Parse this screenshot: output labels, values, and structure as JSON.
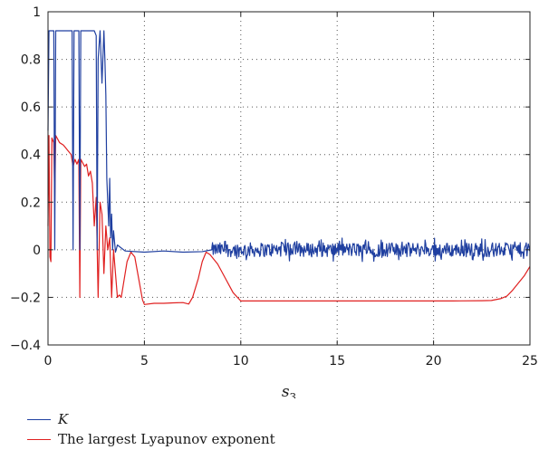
{
  "chart_data": {
    "type": "line",
    "xlabel": "s",
    "xlabel_subscript": "3",
    "ylabel": "",
    "xlim": [
      0,
      25
    ],
    "ylim": [
      -0.4,
      1
    ],
    "x_ticks": [
      0,
      5,
      10,
      15,
      20,
      25
    ],
    "y_ticks": [
      -0.4,
      -0.2,
      0,
      0.2,
      0.4,
      0.6,
      0.8,
      1
    ],
    "x_tick_labels": [
      "0",
      "5",
      "10",
      "15",
      "20",
      "25"
    ],
    "y_tick_labels": [
      "−0.4",
      "−0.2",
      "0",
      "0.2",
      "0.4",
      "0.6",
      "0.8",
      "1"
    ],
    "grid": true,
    "legend_position": "below-left",
    "series": [
      {
        "name": "K",
        "color": "#1f3fa0",
        "noisy_from_x": 8.5,
        "noise_amplitude": 0.03,
        "points": [
          [
            0,
            0.5
          ],
          [
            0.05,
            0.92
          ],
          [
            0.3,
            0.92
          ],
          [
            0.35,
            0.0
          ],
          [
            0.4,
            0.92
          ],
          [
            1.25,
            0.92
          ],
          [
            1.3,
            0.0
          ],
          [
            1.35,
            0.92
          ],
          [
            1.6,
            0.92
          ],
          [
            1.65,
            0.0
          ],
          [
            1.7,
            0.92
          ],
          [
            2.4,
            0.92
          ],
          [
            2.5,
            0.9
          ],
          [
            2.55,
            0.0
          ],
          [
            2.6,
            0.8
          ],
          [
            2.7,
            0.92
          ],
          [
            2.8,
            0.7
          ],
          [
            2.9,
            0.92
          ],
          [
            2.95,
            0.8
          ],
          [
            3.0,
            0.65
          ],
          [
            3.05,
            0.3
          ],
          [
            3.1,
            0.2
          ],
          [
            3.15,
            0.1
          ],
          [
            3.2,
            0.3
          ],
          [
            3.25,
            0.05
          ],
          [
            3.3,
            0.15
          ],
          [
            3.35,
            0.0
          ],
          [
            3.4,
            0.08
          ],
          [
            3.5,
            -0.01
          ],
          [
            3.6,
            0.02
          ],
          [
            4.0,
            -0.005
          ],
          [
            5.0,
            -0.01
          ],
          [
            6.0,
            -0.005
          ],
          [
            7.0,
            -0.01
          ],
          [
            8.0,
            -0.008
          ],
          [
            8.5,
            0.0
          ],
          [
            25,
            0.0
          ]
        ]
      },
      {
        "name": "The largest Lyapunov exponent",
        "color": "#e02020",
        "points": [
          [
            0,
            0.1
          ],
          [
            0.05,
            0.48
          ],
          [
            0.1,
            -0.03
          ],
          [
            0.15,
            -0.05
          ],
          [
            0.2,
            0.47
          ],
          [
            0.3,
            0.45
          ],
          [
            0.35,
            0.2
          ],
          [
            0.4,
            0.48
          ],
          [
            0.6,
            0.45
          ],
          [
            0.8,
            0.44
          ],
          [
            1.0,
            0.42
          ],
          [
            1.2,
            0.4
          ],
          [
            1.3,
            0.35
          ],
          [
            1.4,
            0.38
          ],
          [
            1.5,
            0.36
          ],
          [
            1.6,
            0.38
          ],
          [
            1.65,
            -0.2
          ],
          [
            1.7,
            0.38
          ],
          [
            1.9,
            0.35
          ],
          [
            2.0,
            0.36
          ],
          [
            2.1,
            0.31
          ],
          [
            2.2,
            0.33
          ],
          [
            2.3,
            0.28
          ],
          [
            2.4,
            0.1
          ],
          [
            2.5,
            0.22
          ],
          [
            2.6,
            -0.2
          ],
          [
            2.7,
            0.2
          ],
          [
            2.8,
            0.15
          ],
          [
            2.9,
            -0.1
          ],
          [
            3.0,
            0.1
          ],
          [
            3.1,
            0.0
          ],
          [
            3.2,
            0.05
          ],
          [
            3.3,
            -0.2
          ],
          [
            3.4,
            0.0
          ],
          [
            3.5,
            -0.1
          ],
          [
            3.6,
            -0.2
          ],
          [
            3.7,
            -0.19
          ],
          [
            3.8,
            -0.2
          ],
          [
            3.9,
            -0.15
          ],
          [
            4.1,
            -0.05
          ],
          [
            4.3,
            -0.01
          ],
          [
            4.5,
            -0.03
          ],
          [
            4.7,
            -0.12
          ],
          [
            4.9,
            -0.21
          ],
          [
            5.0,
            -0.23
          ],
          [
            5.5,
            -0.225
          ],
          [
            6.0,
            -0.225
          ],
          [
            6.5,
            -0.223
          ],
          [
            7.0,
            -0.222
          ],
          [
            7.3,
            -0.228
          ],
          [
            7.5,
            -0.2
          ],
          [
            7.8,
            -0.12
          ],
          [
            8.0,
            -0.05
          ],
          [
            8.2,
            -0.01
          ],
          [
            8.4,
            -0.02
          ],
          [
            8.8,
            -0.06
          ],
          [
            9.2,
            -0.12
          ],
          [
            9.6,
            -0.18
          ],
          [
            10.0,
            -0.215
          ],
          [
            12.0,
            -0.215
          ],
          [
            15.0,
            -0.215
          ],
          [
            18.0,
            -0.215
          ],
          [
            21.0,
            -0.215
          ],
          [
            22.5,
            -0.214
          ],
          [
            23.0,
            -0.213
          ],
          [
            23.5,
            -0.205
          ],
          [
            23.8,
            -0.195
          ],
          [
            24.1,
            -0.17
          ],
          [
            24.4,
            -0.14
          ],
          [
            24.7,
            -0.11
          ],
          [
            25.0,
            -0.07
          ]
        ]
      }
    ]
  }
}
